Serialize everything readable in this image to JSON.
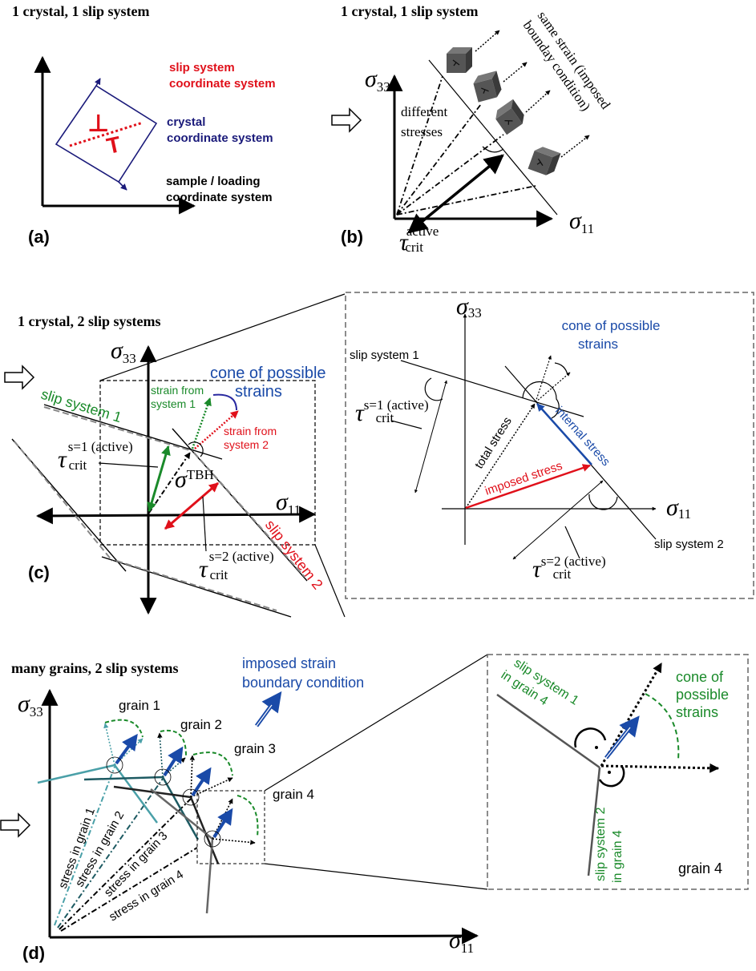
{
  "colors": {
    "red": "#e0101a",
    "navy": "#1a1a7a",
    "blue": "#1a4aa8",
    "green": "#1a8a2a",
    "teal": "#4aa0a8",
    "darkteal": "#1d5a62",
    "gray": "#555555"
  },
  "panel_a": {
    "title": "1 crystal, 1 slip system",
    "label": "(a)",
    "slip_cs": [
      "slip system",
      "coordinate system"
    ],
    "crystal_cs": [
      "crystal",
      "coordinate system"
    ],
    "sample_cs": [
      "sample / loading",
      "coordinate system"
    ],
    "dislocation_symbols": [
      "⊥",
      "T"
    ]
  },
  "panel_b": {
    "title": "1 crystal, 1 slip system",
    "label": "(b)",
    "sigma": "σ",
    "sub33": "33",
    "sub11": "11",
    "different_stresses": [
      "different",
      "stresses"
    ],
    "same_strain": [
      "same strain (imposed",
      "bounday condition)"
    ],
    "tau": "τ",
    "tau_sup": "active",
    "tau_sub": "crit"
  },
  "panel_c": {
    "title": "1 crystal, 2 slip systems",
    "label": "(c)",
    "sigma": "σ",
    "sub33": "33",
    "sub11": "11",
    "cone": [
      "cone of possible",
      "strains"
    ],
    "strain_sys1": [
      "strain from",
      "system 1"
    ],
    "strain_sys2": [
      "strain from",
      "system 2"
    ],
    "slip_system_1": "slip system 1",
    "slip_system_2": "slip system 2",
    "tau": "τ",
    "tau1_sup": "s=1 (active)",
    "tau2_sup": "s=2 (active)",
    "tau_sub": "crit",
    "sigma_tbh_sup": "TBH"
  },
  "panel_c_zoom": {
    "sigma": "σ",
    "sub33": "33",
    "sub11": "11",
    "cone": [
      "cone of possible",
      "strains"
    ],
    "slip_system_1": "slip system 1",
    "slip_system_2": "slip system 2",
    "total_stress": "total stress",
    "imposed_stress": "imposed stress",
    "internal_stress": "internal stress",
    "tau": "τ",
    "tau1_sup": "s=1 (active)",
    "tau2_sup": "s=2 (active)",
    "tau_sub": "crit"
  },
  "panel_d": {
    "title": "many grains, 2 slip systems",
    "label": "(d)",
    "sigma": "σ",
    "sub33": "33",
    "sub11": "11",
    "imposed_bc": [
      "imposed strain",
      "boundary condition"
    ],
    "grains": [
      "grain 1",
      "grain 2",
      "grain 3",
      "grain 4"
    ],
    "stress_labels": [
      "stress in grain 1",
      "stress in grain 2",
      "stress in grain 3",
      "stress in grain 4"
    ]
  },
  "panel_d_zoom": {
    "slip1": [
      "slip system 1",
      "in grain 4"
    ],
    "slip2": [
      "slip system 2",
      "in grain 4"
    ],
    "cone": [
      "cone of",
      "possible",
      "strains"
    ],
    "grain": "grain 4"
  }
}
